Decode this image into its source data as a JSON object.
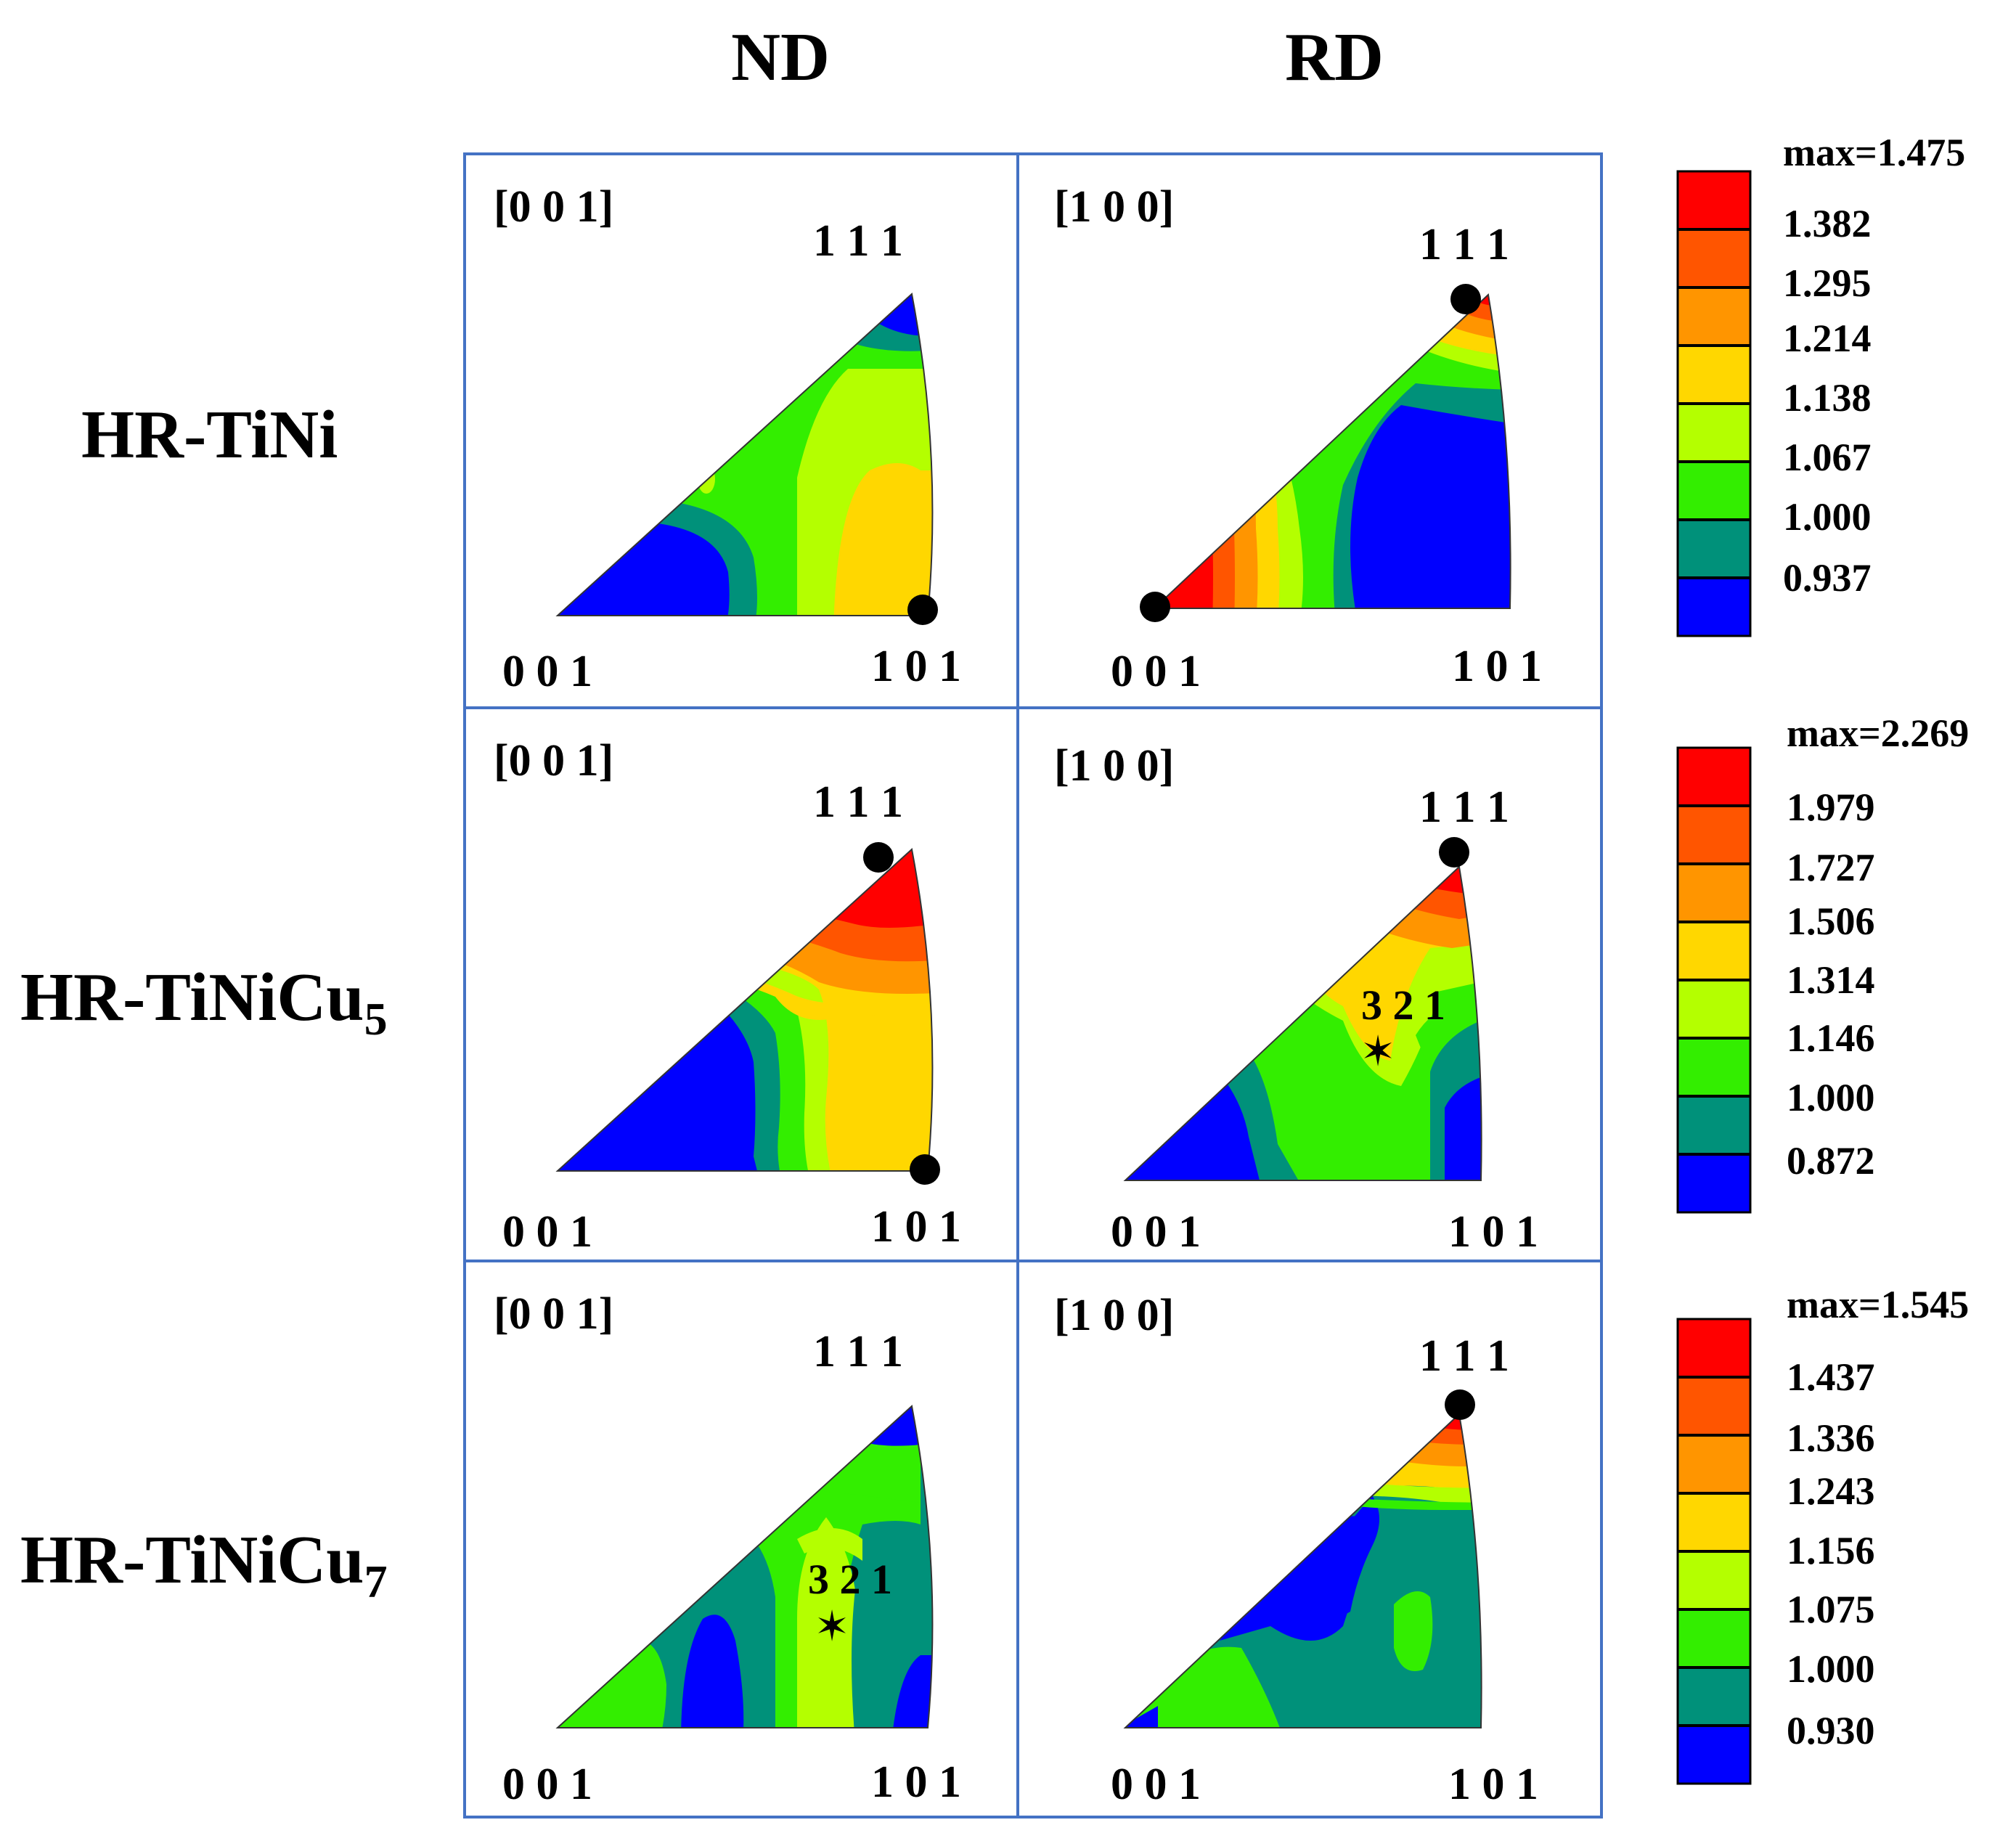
{
  "columns": [
    "ND",
    "RD"
  ],
  "rows": [
    {
      "label": "HR-TiNi",
      "subscript": "",
      "nd": {
        "direction": "[0 0 1]",
        "corners": {
          "origin": "0 0 1",
          "right": "1 0 1",
          "top": "1 1 1"
        },
        "markers": [
          "1 0 1"
        ]
      },
      "rd": {
        "direction": "[1 0 0]",
        "corners": {
          "origin": "0 0 1",
          "right": "1 0 1",
          "top": "1 1 1"
        },
        "markers": [
          "1 1 1",
          "0 0 1"
        ]
      },
      "scale": {
        "max": "max=1.475",
        "levels": [
          "1.382",
          "1.295",
          "1.214",
          "1.138",
          "1.067",
          "1.000",
          "0.937"
        ]
      }
    },
    {
      "label": "HR-TiNiCu",
      "subscript": "5",
      "nd": {
        "direction": "[0 0 1]",
        "corners": {
          "origin": "0 0 1",
          "right": "1 0 1",
          "top": "1 1 1"
        },
        "markers": [
          "1 1 1",
          "1 0 1"
        ]
      },
      "rd": {
        "direction": "[1 0 0]",
        "corners": {
          "origin": "0 0 1",
          "right": "1 0 1",
          "top": "1 1 1"
        },
        "markers": [
          "1 1 1"
        ],
        "star_label": "3 2 1"
      },
      "scale": {
        "max": "max=2.269",
        "levels": [
          "1.979",
          "1.727",
          "1.506",
          "1.314",
          "1.146",
          "1.000",
          "0.872"
        ]
      }
    },
    {
      "label": "HR-TiNiCu",
      "subscript": "7",
      "nd": {
        "direction": "[0 0 1]",
        "corners": {
          "origin": "0 0 1",
          "right": "1 0 1",
          "top": "1 1 1"
        },
        "markers": [],
        "star_label": "3 2 1"
      },
      "rd": {
        "direction": "[1 0 0]",
        "corners": {
          "origin": "0 0 1",
          "right": "1 0 1",
          "top": "1 1 1"
        },
        "markers": [
          "1 1 1"
        ]
      },
      "scale": {
        "max": "max=1.545",
        "levels": [
          "1.437",
          "1.336",
          "1.243",
          "1.156",
          "1.075",
          "1.000",
          "0.930"
        ]
      }
    }
  ],
  "colors": {
    "frame": "#4472C4",
    "levels": [
      "#ff0000",
      "#ff5500",
      "#ff9500",
      "#ffd700",
      "#b4ff00",
      "#33ee00",
      "#00917a",
      "#0000ff"
    ]
  }
}
